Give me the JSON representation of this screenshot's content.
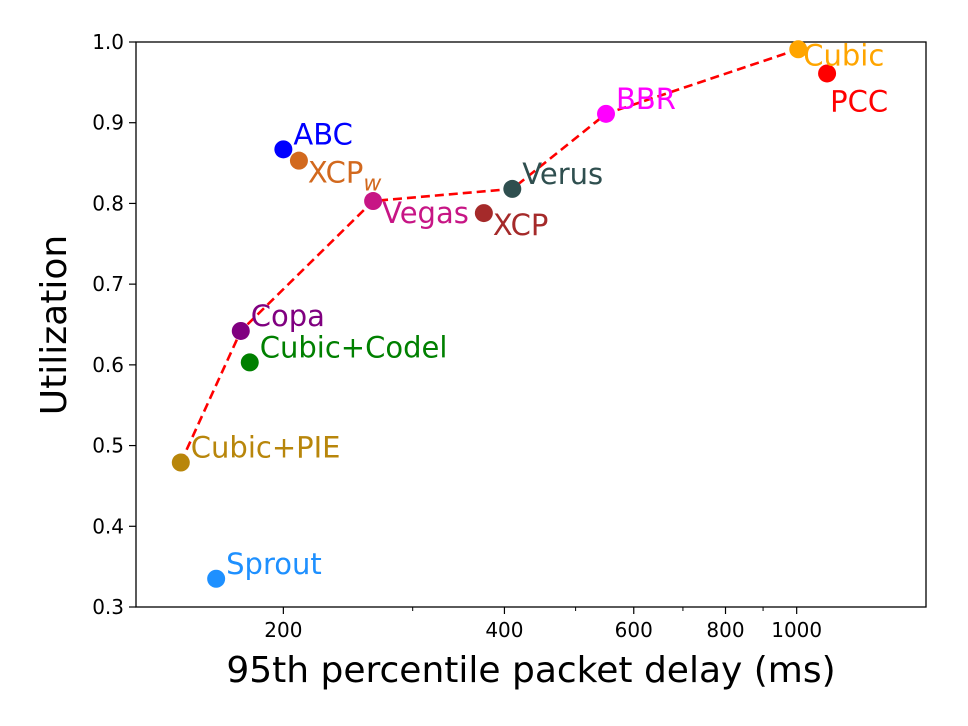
{
  "chart_data": {
    "type": "scatter",
    "xscale": "log",
    "xlabel": "95th percentile packet delay (ms)",
    "ylabel": "Utilization",
    "xlim": [
      126,
      1500
    ],
    "ylim": [
      0.3,
      1.0
    ],
    "xticks_major": [
      {
        "value": 200,
        "label": "200"
      },
      {
        "value": 400,
        "label": "400"
      },
      {
        "value": 600,
        "label": "600"
      },
      {
        "value": 800,
        "label": "800"
      },
      {
        "value": 1000,
        "label": "1000"
      }
    ],
    "xticks_minor": [
      300,
      500,
      700,
      900
    ],
    "yticks": [
      {
        "value": 0.3,
        "label": "0.3"
      },
      {
        "value": 0.4,
        "label": "0.4"
      },
      {
        "value": 0.5,
        "label": "0.5"
      },
      {
        "value": 0.6,
        "label": "0.6"
      },
      {
        "value": 0.7,
        "label": "0.7"
      },
      {
        "value": 0.8,
        "label": "0.8"
      },
      {
        "value": 0.9,
        "label": "0.9"
      },
      {
        "value": 1.0,
        "label": "1.0"
      }
    ],
    "points": [
      {
        "name": "ABC",
        "sub": "",
        "x": 200,
        "y": 0.867,
        "color": "#0000ff",
        "anchor": "right-up"
      },
      {
        "name": "XCP",
        "sub": "w",
        "x": 210,
        "y": 0.853,
        "color": "#d2691e",
        "anchor": "right-down"
      },
      {
        "name": "Vegas",
        "sub": "",
        "x": 265,
        "y": 0.803,
        "color": "#c71585",
        "anchor": "right-down"
      },
      {
        "name": "XCP",
        "sub": "",
        "x": 375,
        "y": 0.788,
        "color": "#a52a2a",
        "anchor": "right-down"
      },
      {
        "name": "Verus",
        "sub": "",
        "x": 410,
        "y": 0.818,
        "color": "#2f4f4f",
        "anchor": "right-up"
      },
      {
        "name": "BBR",
        "sub": "",
        "x": 550,
        "y": 0.911,
        "color": "#ff00ff",
        "anchor": "right-up"
      },
      {
        "name": "Cubic",
        "sub": "",
        "x": 1005,
        "y": 0.991,
        "color": "#ffa500",
        "anchor": "right-down-small"
      },
      {
        "name": "PCC",
        "sub": "",
        "x": 1100,
        "y": 0.961,
        "color": "#ff0000",
        "anchor": "below"
      },
      {
        "name": "Copa",
        "sub": "",
        "x": 175,
        "y": 0.642,
        "color": "#800080",
        "anchor": "right-up"
      },
      {
        "name": "Cubic+Codel",
        "sub": "",
        "x": 180,
        "y": 0.603,
        "color": "#008000",
        "anchor": "right-up"
      },
      {
        "name": "Cubic+PIE",
        "sub": "",
        "x": 145,
        "y": 0.479,
        "color": "#b8860b",
        "anchor": "right-up"
      },
      {
        "name": "Sprout",
        "sub": "",
        "x": 162,
        "y": 0.335,
        "color": "#1e90ff",
        "anchor": "right-up"
      }
    ],
    "frontier": {
      "color": "#ff0000",
      "points": [
        {
          "x": 145,
          "y": 0.479
        },
        {
          "x": 175,
          "y": 0.642
        },
        {
          "x": 265,
          "y": 0.803
        },
        {
          "x": 410,
          "y": 0.818
        },
        {
          "x": 550,
          "y": 0.911
        },
        {
          "x": 1005,
          "y": 0.991
        }
      ]
    }
  }
}
